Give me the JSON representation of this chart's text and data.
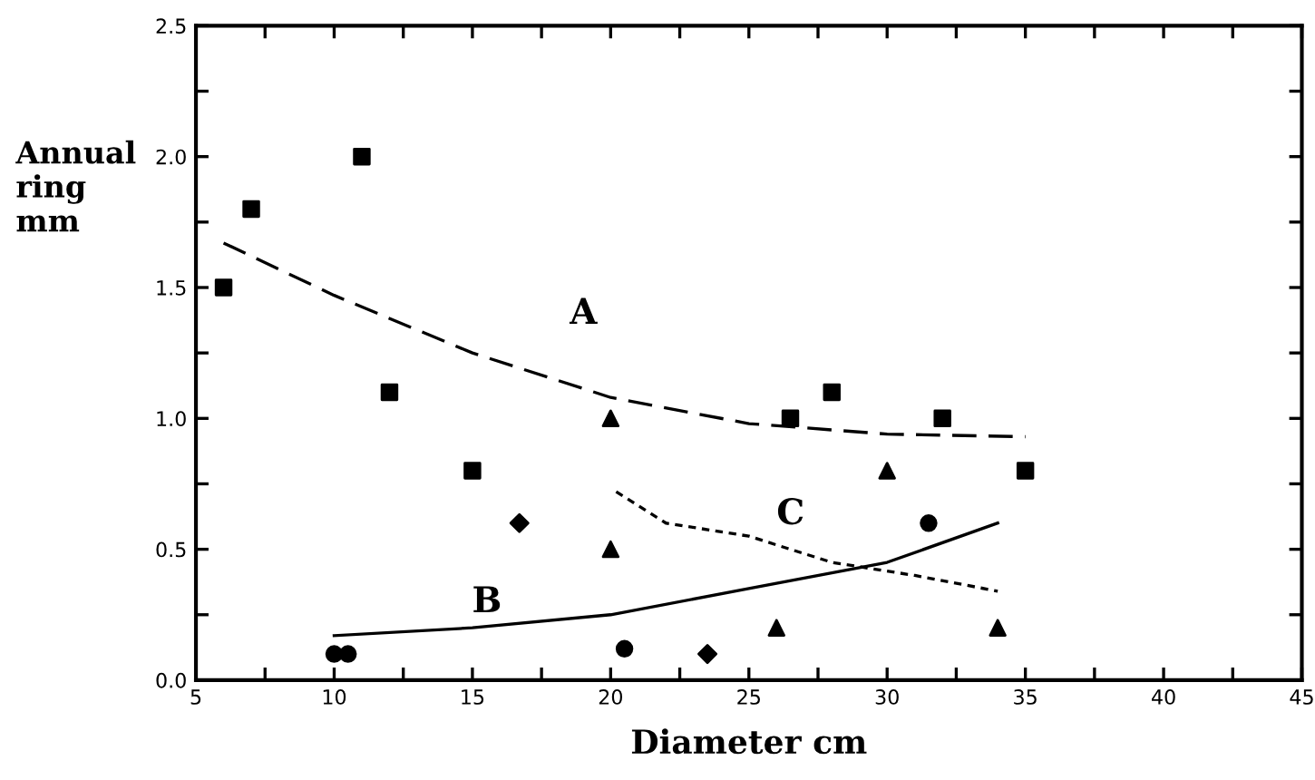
{
  "chart_data": {
    "type": "scatter",
    "xlabel": "Diameter cm",
    "ylabel": "Annual\nring\nmm",
    "series": [
      {
        "marker": "square",
        "color": "#000000",
        "x": [
          6,
          7,
          11,
          12,
          15,
          26.5,
          28,
          32,
          35
        ],
        "values": [
          1.5,
          1.8,
          2.0,
          1.1,
          0.8,
          1.0,
          1.1,
          1.0,
          0.8
        ]
      },
      {
        "marker": "triangle",
        "color": "#000000",
        "x": [
          20,
          20,
          26,
          30,
          34
        ],
        "values": [
          1.0,
          0.5,
          0.2,
          0.8,
          0.2
        ]
      },
      {
        "marker": "circle",
        "color": "#000000",
        "x": [
          10,
          10.5,
          20.5,
          31.5
        ],
        "values": [
          0.1,
          0.1,
          0.12,
          0.6
        ]
      },
      {
        "marker": "diamond",
        "color": "#000000",
        "x": [
          16.7,
          23.5
        ],
        "values": [
          0.6,
          0.1
        ]
      },
      {
        "type": "line",
        "name": "A",
        "line_style": "dashed",
        "color": "#000000",
        "x": [
          6,
          10,
          15,
          20,
          25,
          30,
          35
        ],
        "values": [
          1.67,
          1.47,
          1.25,
          1.08,
          0.98,
          0.94,
          0.93
        ]
      },
      {
        "type": "line",
        "name": "B",
        "line_style": "solid",
        "color": "#000000",
        "x": [
          10,
          15,
          20,
          25,
          30,
          34
        ],
        "values": [
          0.17,
          0.2,
          0.25,
          0.35,
          0.45,
          0.6
        ]
      },
      {
        "type": "line",
        "name": "C",
        "line_style": "dotted",
        "color": "#000000",
        "x": [
          20.2,
          22,
          25,
          28,
          31,
          34
        ],
        "values": [
          0.72,
          0.6,
          0.55,
          0.45,
          0.4,
          0.34
        ]
      }
    ],
    "xlim": [
      5,
      45
    ],
    "ylim": [
      0,
      2.5
    ],
    "xticks": [
      5,
      {
        "value": 7.5,
        "label": null
      },
      10,
      {
        "value": 12.5,
        "label": null
      },
      15,
      {
        "value": 17.5,
        "label": null
      },
      20,
      {
        "value": 22.5,
        "label": null
      },
      25,
      {
        "value": 27.5,
        "label": null
      },
      30,
      {
        "value": 32.5,
        "label": null
      },
      35,
      {
        "value": 37.5,
        "label": null
      },
      40,
      {
        "value": 42.5,
        "label": null
      },
      45
    ],
    "yticks": [
      {
        "value": 0,
        "label": "0.0"
      },
      {
        "value": 0.25,
        "label": null
      },
      {
        "value": 0.5,
        "label": "0.5"
      },
      {
        "value": 0.75,
        "label": null
      },
      {
        "value": 1,
        "label": "1.0"
      },
      {
        "value": 1.25,
        "label": null
      },
      {
        "value": 1.5,
        "label": "1.5"
      },
      {
        "value": 1.75,
        "label": null
      },
      {
        "value": 2,
        "label": "2.0"
      },
      {
        "value": 2.25,
        "label": null
      },
      {
        "value": 2.5,
        "label": "2.5"
      }
    ],
    "grid": false,
    "legend": false
  }
}
